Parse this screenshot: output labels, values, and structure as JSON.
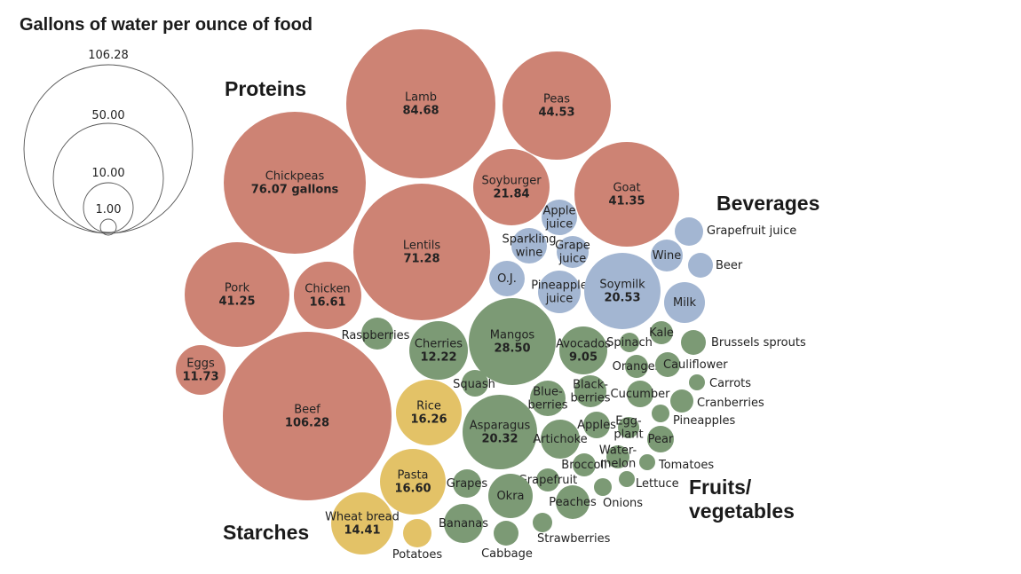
{
  "chart_data": {
    "type": "bubble",
    "title": "Gallons of water per ounce of food",
    "unit_note": "gallons",
    "colors": {
      "proteins": "#cd8374",
      "starches": "#e3c267",
      "beverages": "#a3b6d2",
      "fruits_vegetables": "#7c9a75"
    },
    "groups": [
      {
        "key": "proteins",
        "label": "Proteins"
      },
      {
        "key": "beverages",
        "label": "Beverages"
      },
      {
        "key": "fruits_vegetables",
        "label": "Fruits/\nvegetables"
      },
      {
        "key": "starches",
        "label": "Starches"
      }
    ],
    "scale_legend": [
      {
        "value": 106.28,
        "label": "106.28"
      },
      {
        "value": 50.0,
        "label": "50.00"
      },
      {
        "value": 10.0,
        "label": "10.00"
      },
      {
        "value": 1.0,
        "label": "1.00"
      }
    ],
    "items": [
      {
        "name": "Lamb",
        "value": 84.68,
        "group": "proteins",
        "value_label": "84.68"
      },
      {
        "name": "Peas",
        "value": 44.53,
        "group": "proteins",
        "value_label": "44.53"
      },
      {
        "name": "Chickpeas",
        "value": 76.07,
        "group": "proteins",
        "value_label": "76.07 gallons"
      },
      {
        "name": "Soyburger",
        "value": 21.84,
        "group": "proteins",
        "value_label": "21.84"
      },
      {
        "name": "Goat",
        "value": 41.35,
        "group": "proteins",
        "value_label": "41.35"
      },
      {
        "name": "Lentils",
        "value": 71.28,
        "group": "proteins",
        "value_label": "71.28"
      },
      {
        "name": "Pork",
        "value": 41.25,
        "group": "proteins",
        "value_label": "41.25"
      },
      {
        "name": "Chicken",
        "value": 16.61,
        "group": "proteins",
        "value_label": "16.61"
      },
      {
        "name": "Eggs",
        "value": 11.73,
        "group": "proteins",
        "value_label": "11.73"
      },
      {
        "name": "Beef",
        "value": 106.28,
        "group": "proteins",
        "value_label": "106.28"
      },
      {
        "name": "Rice",
        "value": 16.26,
        "group": "starches",
        "value_label": "16.26"
      },
      {
        "name": "Pasta",
        "value": 16.6,
        "group": "starches",
        "value_label": "16.60"
      },
      {
        "name": "Wheat bread",
        "value": 14.41,
        "group": "starches",
        "value_label": "14.41"
      },
      {
        "name": "Potatoes",
        "value": null,
        "group": "starches"
      },
      {
        "name": "Apple\njuice",
        "value": null,
        "group": "beverages"
      },
      {
        "name": "Sparkling\nwine",
        "value": null,
        "group": "beverages"
      },
      {
        "name": "Grape\njuice",
        "value": null,
        "group": "beverages"
      },
      {
        "name": "O.J.",
        "value": null,
        "group": "beverages"
      },
      {
        "name": "Pineapple\njuice",
        "value": null,
        "group": "beverages"
      },
      {
        "name": "Soymilk",
        "value": 20.53,
        "group": "beverages",
        "value_label": "20.53"
      },
      {
        "name": "Wine",
        "value": null,
        "group": "beverages"
      },
      {
        "name": "Grapefruit juice",
        "value": null,
        "group": "beverages"
      },
      {
        "name": "Beer",
        "value": null,
        "group": "beverages"
      },
      {
        "name": "Milk",
        "value": null,
        "group": "beverages"
      },
      {
        "name": "Mangos",
        "value": 28.5,
        "group": "fruits_vegetables",
        "value_label": "28.50"
      },
      {
        "name": "Cherries",
        "value": 12.22,
        "group": "fruits_vegetables",
        "value_label": "12.22"
      },
      {
        "name": "Avocados",
        "value": 9.05,
        "group": "fruits_vegetables",
        "value_label": "9.05"
      },
      {
        "name": "Asparagus",
        "value": 20.32,
        "group": "fruits_vegetables",
        "value_label": "20.32"
      },
      {
        "name": "Raspberries",
        "value": null,
        "group": "fruits_vegetables"
      },
      {
        "name": "Squash",
        "value": null,
        "group": "fruits_vegetables"
      },
      {
        "name": "Blue-\nberries",
        "value": null,
        "group": "fruits_vegetables"
      },
      {
        "name": "Black-\nberries",
        "value": null,
        "group": "fruits_vegetables"
      },
      {
        "name": "Spinach",
        "value": null,
        "group": "fruits_vegetables"
      },
      {
        "name": "Kale",
        "value": null,
        "group": "fruits_vegetables"
      },
      {
        "name": "Brussels sprouts",
        "value": null,
        "group": "fruits_vegetables"
      },
      {
        "name": "Oranges",
        "value": null,
        "group": "fruits_vegetables"
      },
      {
        "name": "Cauliflower",
        "value": null,
        "group": "fruits_vegetables"
      },
      {
        "name": "Carrots",
        "value": null,
        "group": "fruits_vegetables"
      },
      {
        "name": "Cucumber",
        "value": null,
        "group": "fruits_vegetables"
      },
      {
        "name": "Cranberries",
        "value": null,
        "group": "fruits_vegetables"
      },
      {
        "name": "Apples",
        "value": null,
        "group": "fruits_vegetables"
      },
      {
        "name": "Egg-\nplant",
        "value": null,
        "group": "fruits_vegetables"
      },
      {
        "name": "Pineapples",
        "value": null,
        "group": "fruits_vegetables"
      },
      {
        "name": "Artichoke",
        "value": null,
        "group": "fruits_vegetables"
      },
      {
        "name": "Pear",
        "value": null,
        "group": "fruits_vegetables"
      },
      {
        "name": "Broccoli",
        "value": null,
        "group": "fruits_vegetables"
      },
      {
        "name": "Water-\nmelon",
        "value": null,
        "group": "fruits_vegetables"
      },
      {
        "name": "Tomatoes",
        "value": null,
        "group": "fruits_vegetables"
      },
      {
        "name": "Grapefruit",
        "value": null,
        "group": "fruits_vegetables"
      },
      {
        "name": "Lettuce",
        "value": null,
        "group": "fruits_vegetables"
      },
      {
        "name": "Grapes",
        "value": null,
        "group": "fruits_vegetables"
      },
      {
        "name": "Okra",
        "value": null,
        "group": "fruits_vegetables"
      },
      {
        "name": "Peaches",
        "value": null,
        "group": "fruits_vegetables"
      },
      {
        "name": "Onions",
        "value": null,
        "group": "fruits_vegetables"
      },
      {
        "name": "Bananas",
        "value": null,
        "group": "fruits_vegetables"
      },
      {
        "name": "Strawberries",
        "value": null,
        "group": "fruits_vegetables"
      },
      {
        "name": "Cabbage",
        "value": null,
        "group": "fruits_vegetables"
      }
    ]
  }
}
